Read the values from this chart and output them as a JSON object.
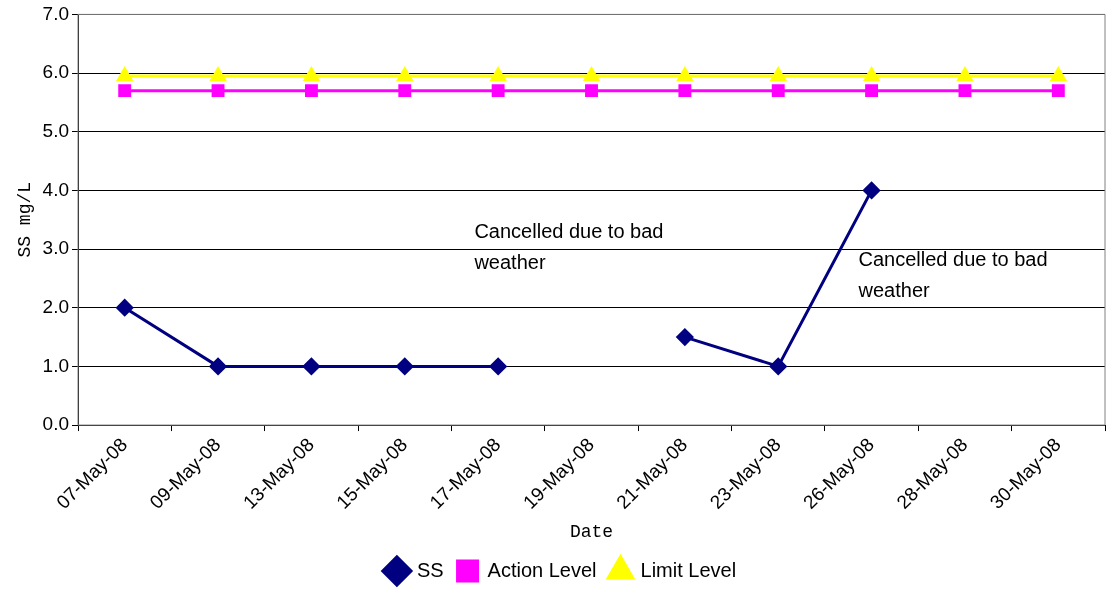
{
  "chart_data": {
    "type": "line",
    "xlabel": "Date",
    "ylabel": "SS mg/L",
    "categories": [
      "07-May-08",
      "09-May-08",
      "13-May-08",
      "15-May-08",
      "17-May-08",
      "19-May-08",
      "21-May-08",
      "23-May-08",
      "26-May-08",
      "28-May-08",
      "30-May-08"
    ],
    "series": [
      {
        "name": "SS",
        "color": "#000080",
        "marker": "diamond",
        "values": [
          2,
          1,
          1,
          1,
          1,
          null,
          1.5,
          1,
          4,
          null,
          null
        ]
      },
      {
        "name": "Action Level",
        "color": "#ff00ff",
        "marker": "square",
        "values": [
          5.7,
          5.7,
          5.7,
          5.7,
          5.7,
          5.7,
          5.7,
          5.7,
          5.7,
          5.7,
          5.7
        ]
      },
      {
        "name": "Limit Level",
        "color": "#ffff00",
        "marker": "triangle",
        "values": [
          5.95,
          5.95,
          5.95,
          5.95,
          5.95,
          5.95,
          5.95,
          5.95,
          5.95,
          5.95,
          5.95
        ]
      }
    ],
    "ylim": [
      0,
      7
    ],
    "yticks": [
      {
        "value": 0,
        "label": "0.0"
      },
      {
        "value": 1,
        "label": "1.0"
      },
      {
        "value": 2,
        "label": "2.0"
      },
      {
        "value": 3,
        "label": "3.0"
      },
      {
        "value": 4,
        "label": "4.0"
      },
      {
        "value": 5,
        "label": "5.0"
      },
      {
        "value": 6,
        "label": "6.0"
      },
      {
        "value": 7,
        "label": "7.0"
      }
    ],
    "grid": "y",
    "legend": "bottom",
    "annotations": [
      "Cancelled due to bad weather",
      "Cancelled due to bad weather"
    ]
  }
}
